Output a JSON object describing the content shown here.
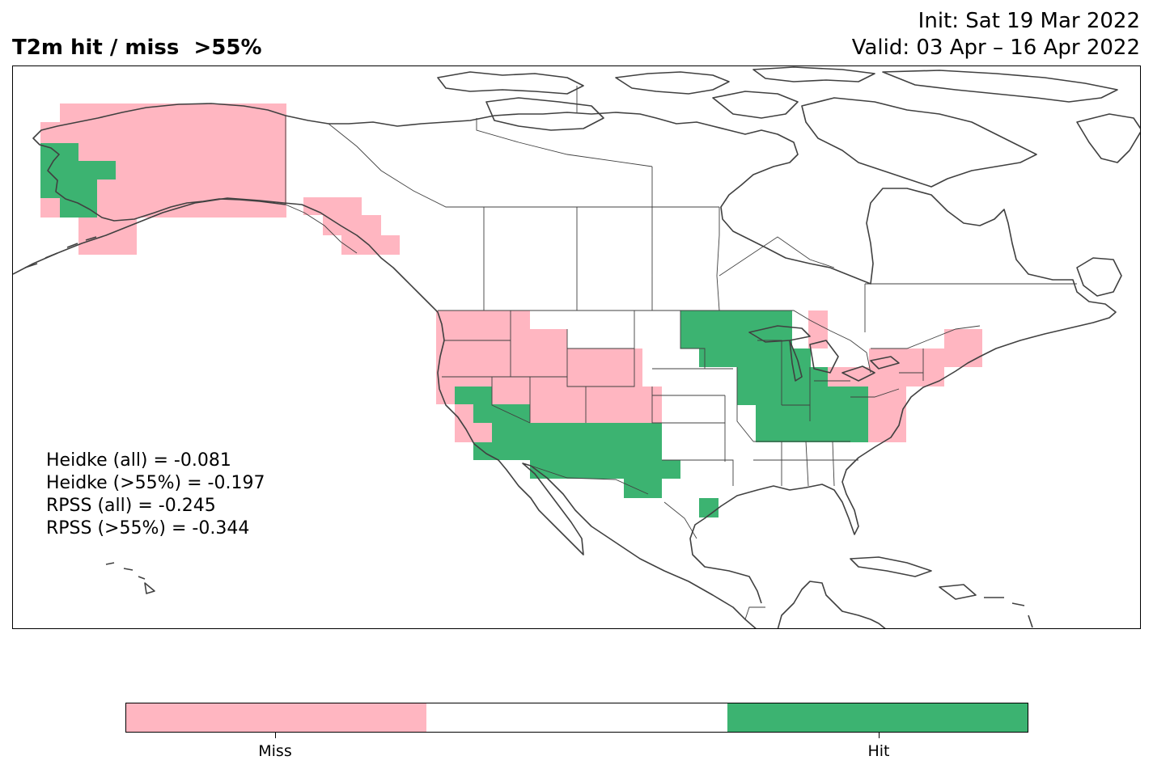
{
  "header": {
    "title": "T2m hit / miss  >55%",
    "init": "Init: Sat 19 Mar 2022",
    "valid": "Valid: 03 Apr – 16 Apr 2022"
  },
  "stats": [
    "Heidke (all) = -0.081",
    "Heidke (>55%) = -0.197",
    "RPSS (all) = -0.245",
    "RPSS (>55%) = -0.344"
  ],
  "legend": {
    "miss_label": "Miss",
    "hit_label": "Hit",
    "colors": {
      "miss": "#ffb6c1",
      "neutral": "#ffffff",
      "hit": "#3cb371"
    }
  },
  "map": {
    "region": "North America",
    "categories": [
      "Miss",
      "Neutral",
      "Hit"
    ],
    "outline_color": "#404040"
  }
}
